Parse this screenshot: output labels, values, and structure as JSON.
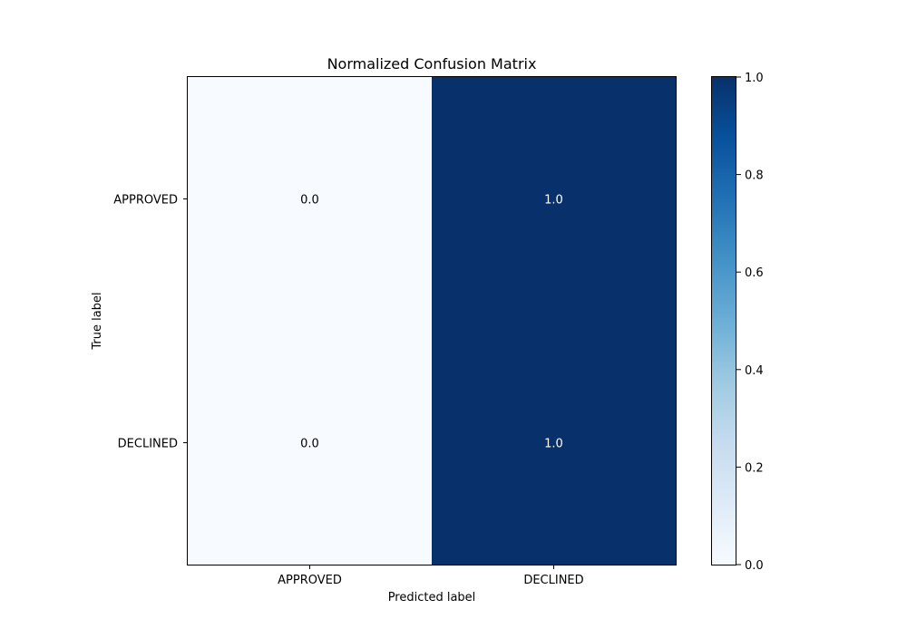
{
  "chart_data": {
    "type": "heatmap",
    "title": "Normalized Confusion Matrix",
    "xlabel": "Predicted label",
    "ylabel": "True label",
    "x_categories": [
      "APPROVED",
      "DECLINED"
    ],
    "y_categories": [
      "APPROVED",
      "DECLINED"
    ],
    "values": [
      [
        0.0,
        1.0
      ],
      [
        0.0,
        1.0
      ]
    ],
    "cell_labels": [
      [
        "0.0",
        "1.0"
      ],
      [
        "0.0",
        "1.0"
      ]
    ],
    "colormap": "Blues",
    "colors": {
      "low": "#f7fbff",
      "high": "#08306b"
    },
    "colorbar": {
      "range": [
        0.0,
        1.0
      ],
      "ticks": [
        "0.0",
        "0.2",
        "0.4",
        "0.6",
        "0.8",
        "1.0"
      ]
    },
    "grid": false
  }
}
